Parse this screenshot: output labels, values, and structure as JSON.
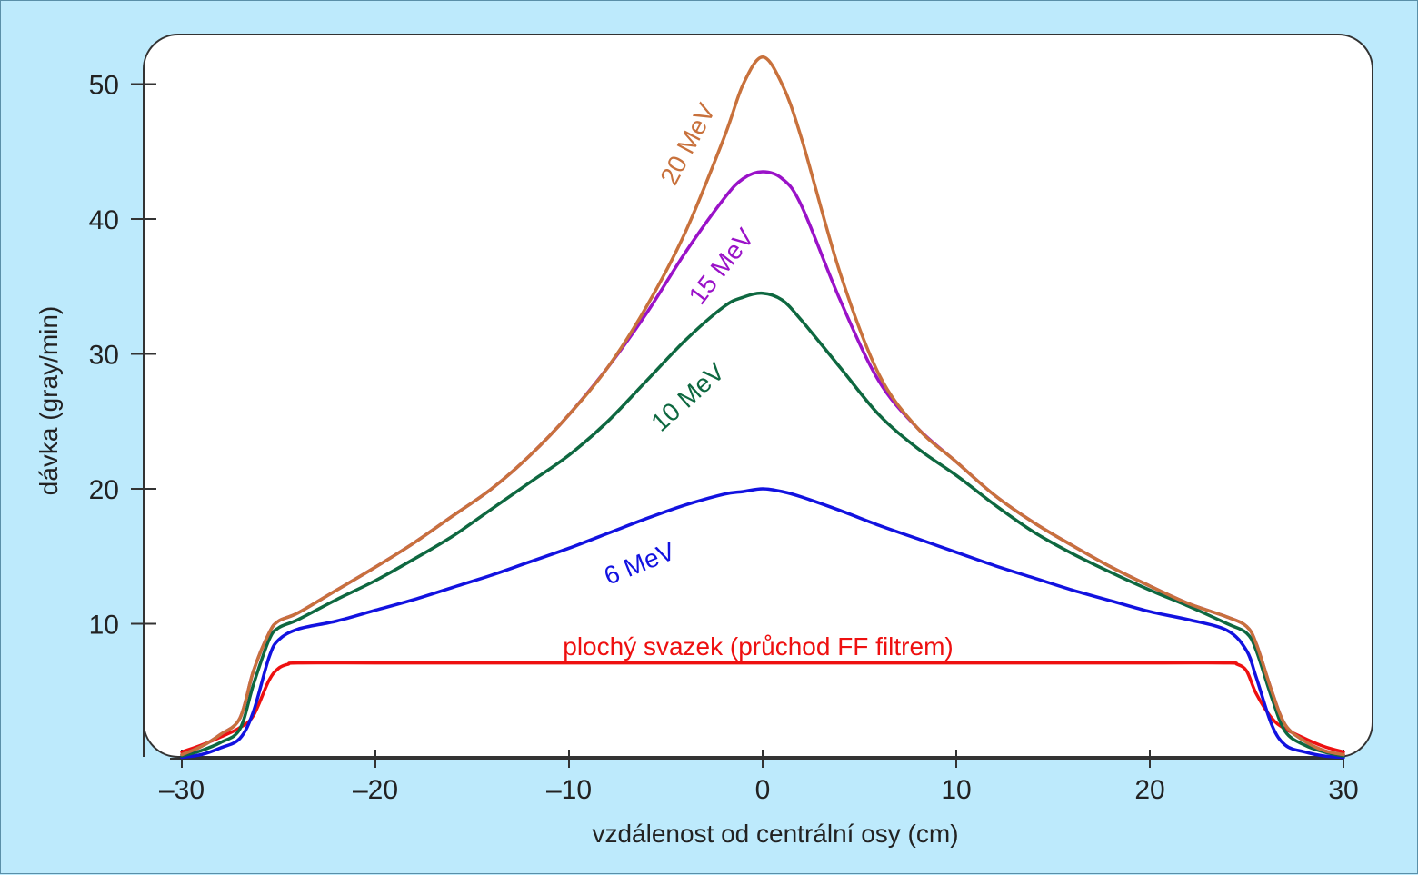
{
  "chart_data": {
    "type": "line",
    "title": "",
    "xlabel": "vzdálenost od centrální osy (cm)",
    "ylabel": "dávka (gray/min)",
    "xlim": [
      -30,
      30
    ],
    "ylim": [
      0,
      52
    ],
    "xticks": [
      -30,
      -20,
      -10,
      0,
      10,
      20,
      30
    ],
    "xtick_labels": [
      "–30",
      "–20",
      "–10",
      "0",
      "10",
      "20",
      "30"
    ],
    "yticks": [
      10,
      20,
      30,
      40,
      50
    ],
    "ytick_labels": [
      "10",
      "20",
      "30",
      "40",
      "50"
    ],
    "grid": false,
    "legend": "inline labels",
    "series": [
      {
        "name": "20 MeV",
        "color": "#c8713c",
        "x": [
          -30,
          -29,
          -28,
          -27,
          -26.3,
          -25.5,
          -25,
          -24,
          -22,
          -20,
          -18,
          -16,
          -14,
          -12,
          -10,
          -8,
          -6,
          -4,
          -2,
          -1,
          0,
          1,
          2,
          4,
          6,
          8,
          10,
          12,
          14,
          16,
          18,
          20,
          22,
          24,
          25,
          25.5,
          26.3,
          27,
          28,
          29,
          30
        ],
        "y": [
          0.3,
          0.9,
          1.8,
          3.0,
          6.5,
          9.3,
          10.2,
          10.8,
          12.5,
          14.2,
          16.0,
          18.0,
          20.0,
          22.5,
          25.5,
          29.0,
          33.5,
          39.0,
          46.0,
          50.0,
          52.0,
          50.0,
          46.0,
          36.0,
          28.5,
          24.5,
          22.0,
          19.5,
          17.5,
          15.8,
          14.2,
          12.8,
          11.5,
          10.5,
          9.8,
          8.5,
          5.0,
          2.5,
          1.3,
          0.6,
          0.3
        ]
      },
      {
        "name": "15 MeV",
        "color": "#9a12c8",
        "x": [
          -30,
          -29,
          -28,
          -27,
          -26.3,
          -25.5,
          -25,
          -24,
          -22,
          -20,
          -18,
          -16,
          -14,
          -12,
          -10,
          -8,
          -6,
          -4,
          -2,
          -1,
          0,
          1,
          2,
          4,
          6,
          8,
          10,
          12,
          14,
          16,
          18,
          20,
          22,
          24,
          25,
          25.5,
          26.3,
          27,
          28,
          29,
          30
        ],
        "y": [
          0.3,
          0.9,
          1.8,
          3.0,
          6.5,
          9.3,
          10.2,
          10.8,
          12.5,
          14.2,
          16.0,
          18.0,
          20.0,
          22.5,
          25.5,
          29.0,
          33.0,
          37.5,
          41.5,
          43.0,
          43.5,
          43.0,
          41.0,
          34.0,
          28.0,
          24.5,
          22.0,
          19.5,
          17.5,
          15.8,
          14.2,
          12.8,
          11.5,
          10.5,
          9.8,
          8.5,
          5.0,
          2.5,
          1.3,
          0.6,
          0.3
        ]
      },
      {
        "name": "10 MeV",
        "color": "#0e6840",
        "x": [
          -30,
          -29,
          -28,
          -27,
          -26.3,
          -25.5,
          -25,
          -24,
          -22,
          -20,
          -18,
          -16,
          -14,
          -12,
          -10,
          -8,
          -6,
          -4,
          -2,
          -1,
          0,
          1,
          2,
          4,
          6,
          8,
          10,
          12,
          14,
          16,
          18,
          20,
          22,
          24,
          25,
          25.5,
          26.3,
          27,
          28,
          29,
          30
        ],
        "y": [
          0.2,
          0.6,
          1.2,
          2.2,
          5.5,
          8.8,
          9.7,
          10.3,
          11.8,
          13.2,
          14.8,
          16.5,
          18.5,
          20.5,
          22.5,
          25.0,
          28.0,
          31.0,
          33.5,
          34.2,
          34.5,
          34.0,
          32.5,
          29.0,
          25.5,
          23.0,
          21.0,
          18.8,
          16.8,
          15.2,
          13.8,
          12.5,
          11.3,
          10.0,
          9.3,
          8.0,
          4.5,
          2.0,
          1.0,
          0.5,
          0.2
        ]
      },
      {
        "name": "6 MeV",
        "color": "#1212e0",
        "x": [
          -30,
          -29,
          -28,
          -27,
          -26.3,
          -25.5,
          -25,
          -24,
          -22,
          -20,
          -18,
          -16,
          -14,
          -12,
          -10,
          -8,
          -6,
          -4,
          -2,
          -1,
          0,
          1,
          2,
          4,
          6,
          8,
          10,
          12,
          14,
          16,
          18,
          20,
          22,
          24,
          25,
          25.5,
          26.3,
          27,
          28,
          29,
          30
        ],
        "y": [
          0.1,
          0.3,
          0.8,
          1.5,
          3.5,
          7.5,
          8.8,
          9.6,
          10.2,
          11.0,
          11.8,
          12.7,
          13.6,
          14.6,
          15.6,
          16.7,
          17.8,
          18.8,
          19.6,
          19.8,
          20.0,
          19.8,
          19.4,
          18.4,
          17.3,
          16.3,
          15.3,
          14.3,
          13.4,
          12.5,
          11.7,
          10.9,
          10.3,
          9.5,
          8.0,
          6.0,
          2.5,
          1.0,
          0.5,
          0.2,
          0.1
        ]
      },
      {
        "name": "plochý svazek (průchod FF filtrem)",
        "color": "#ee1010",
        "x": [
          -30,
          -29,
          -28,
          -27,
          -26.3,
          -25.5,
          -25,
          -24.5,
          -24,
          -20,
          -10,
          0,
          10,
          20,
          24,
          24.5,
          25,
          25.5,
          26.3,
          27,
          28,
          29,
          30
        ],
        "y": [
          0.5,
          1.0,
          1.6,
          2.3,
          3.2,
          5.8,
          6.7,
          7.0,
          7.1,
          7.1,
          7.1,
          7.1,
          7.1,
          7.1,
          7.1,
          7.0,
          6.5,
          4.8,
          3.0,
          2.2,
          1.5,
          0.9,
          0.5
        ]
      }
    ]
  }
}
